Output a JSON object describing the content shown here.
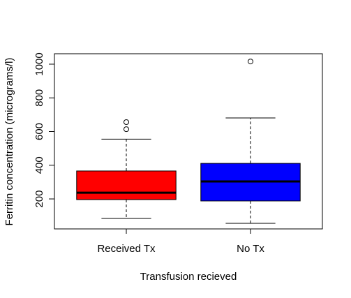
{
  "chart_data": {
    "type": "box",
    "xlabel": "Transfusion recieved",
    "ylabel": "Ferritin concentration (micrograms/l)",
    "categories": [
      "Received Tx",
      "No Tx"
    ],
    "boxes": [
      {
        "min": 84,
        "q1": 196,
        "median": 237,
        "q3": 366,
        "max": 555,
        "outliers": [
          614,
          656
        ],
        "color": "#ff0000"
      },
      {
        "min": 55,
        "q1": 188,
        "median": 304,
        "q3": 411,
        "max": 681,
        "outliers": [
          1016
        ],
        "color": "#0000ff"
      }
    ],
    "ylim": [
      22,
      1062
    ],
    "yticks": [
      200,
      400,
      600,
      800,
      1000
    ]
  }
}
